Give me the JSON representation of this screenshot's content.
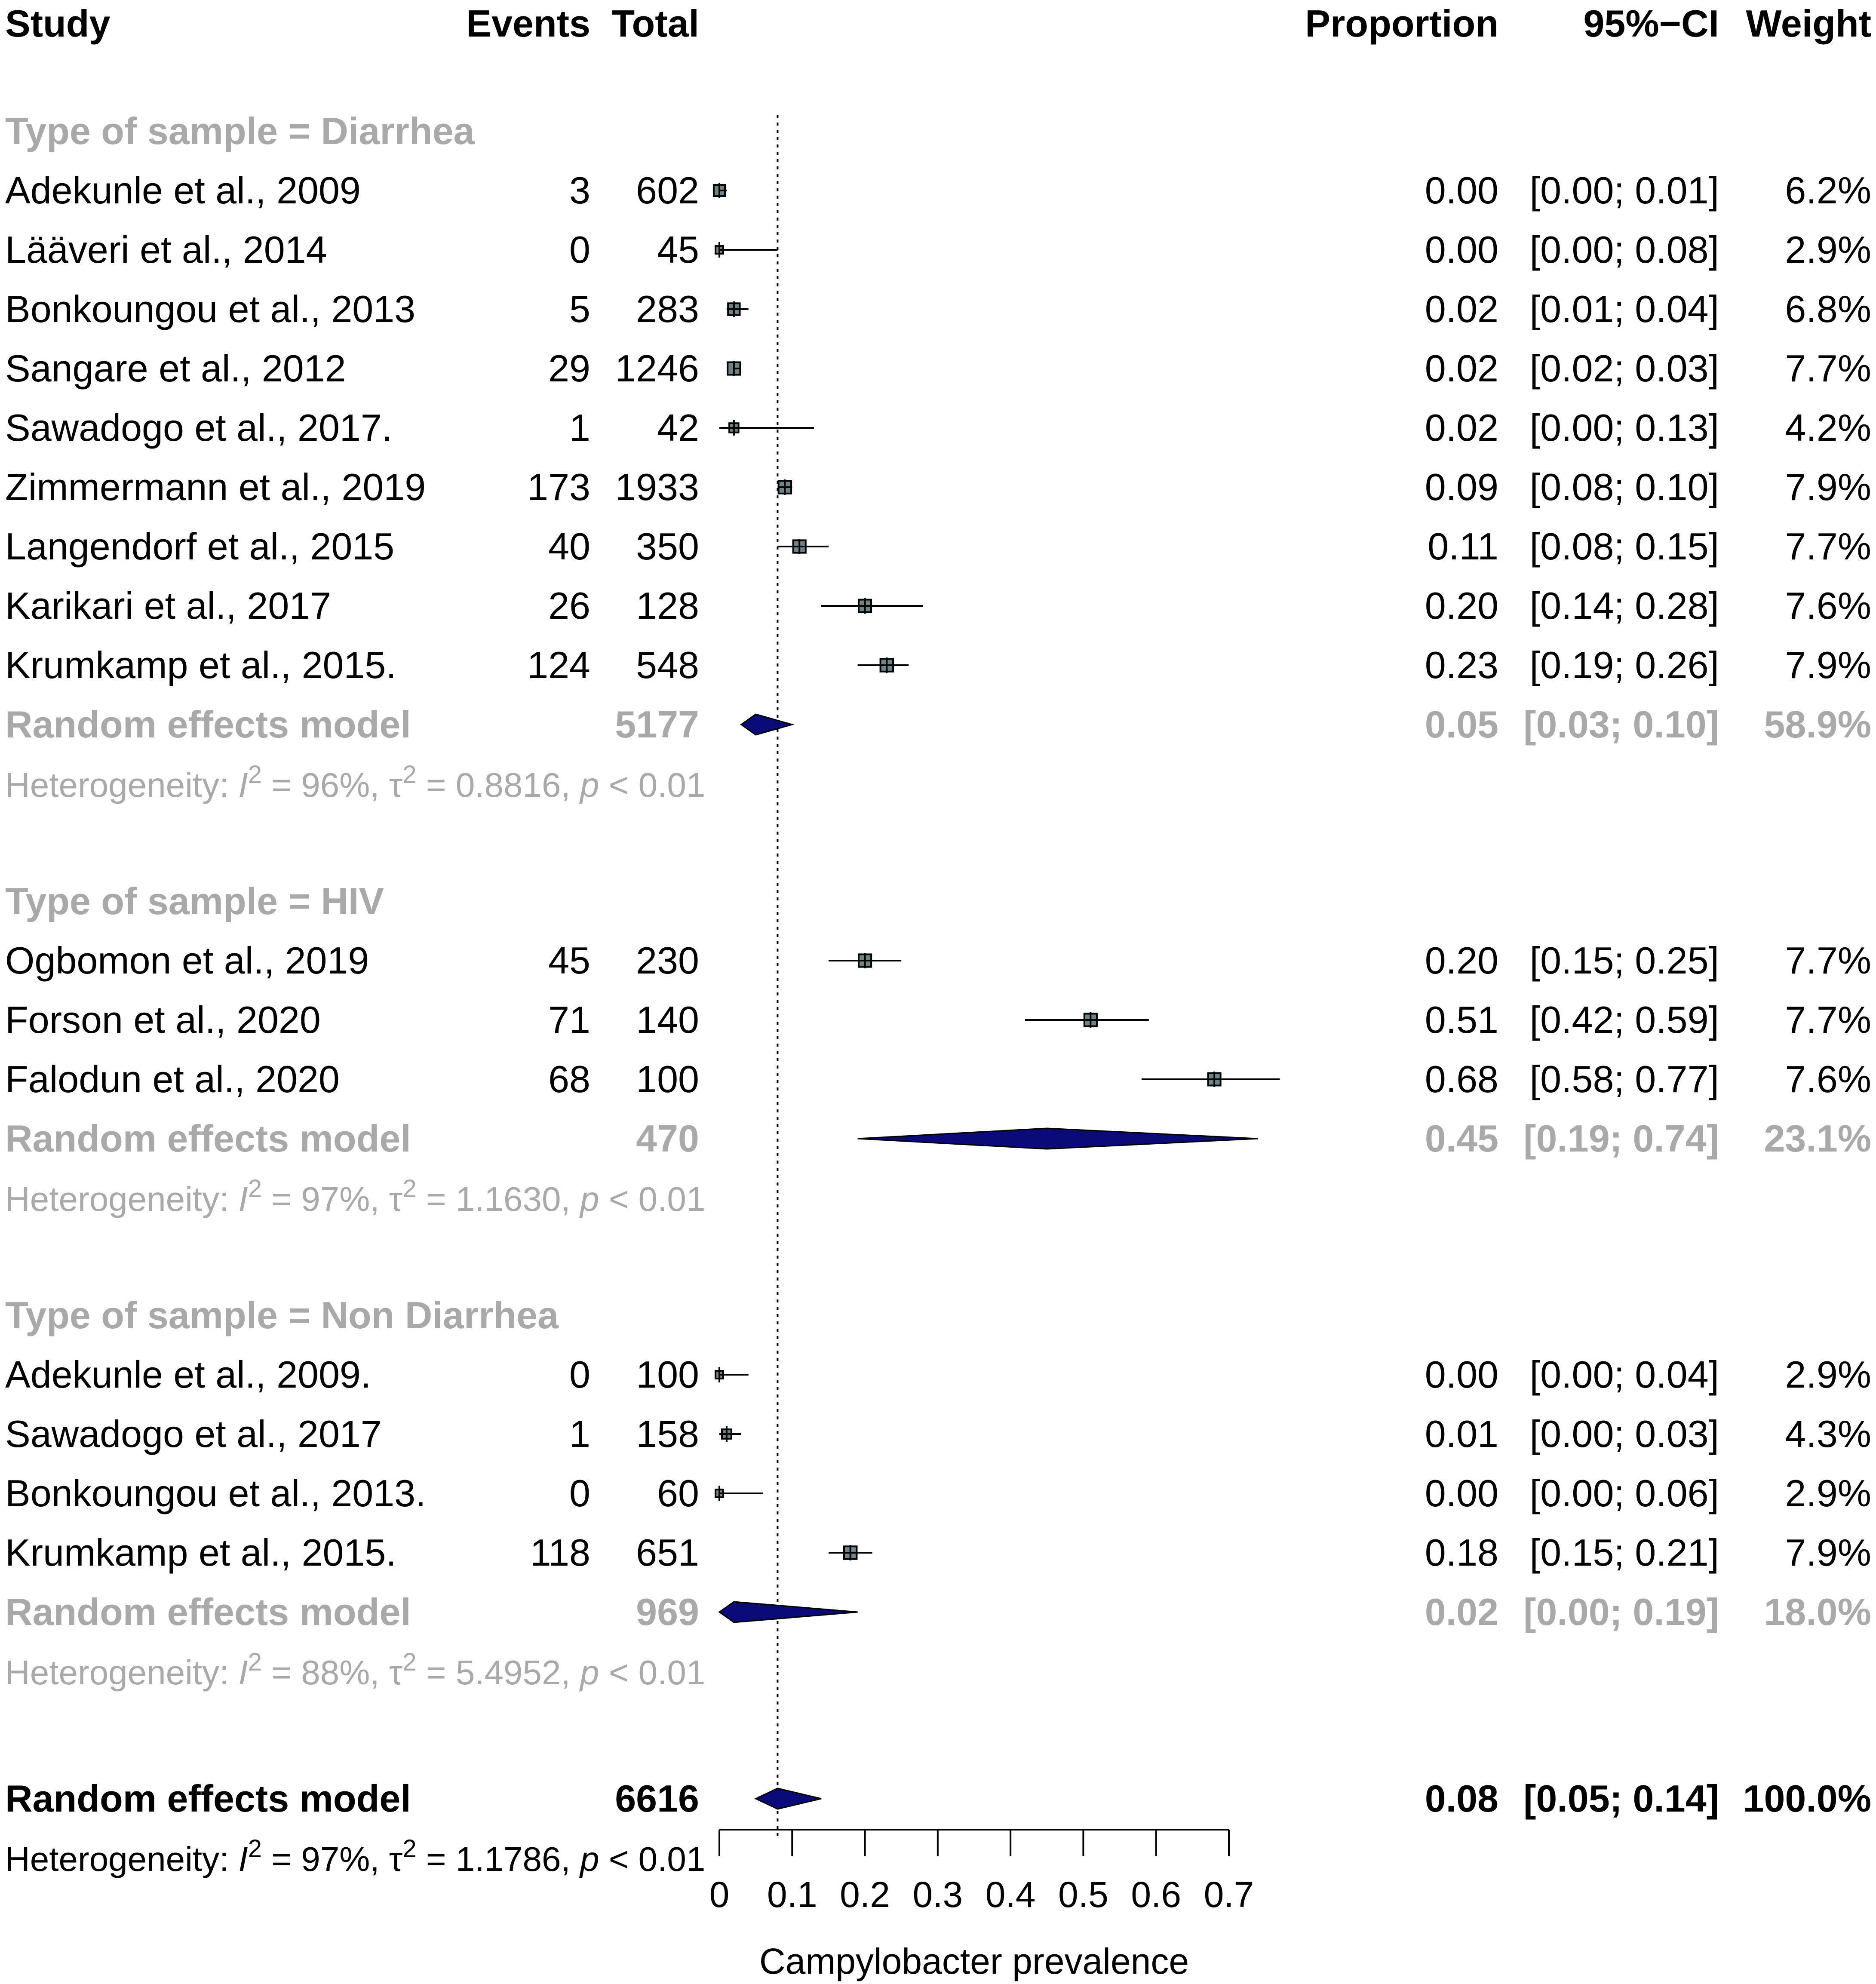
{
  "headers": {
    "study": "Study",
    "events": "Events",
    "total": "Total",
    "proportion": "Proportion",
    "ci": "95%−CI",
    "weight": "Weight"
  },
  "colors": {
    "square_fill": "#6f8488",
    "diamond_fill": "#0a0a78",
    "subgroup_text": "#a9a9a9",
    "text": "#000000"
  },
  "subgroups": [
    {
      "header": "Type of sample = Diarrhea",
      "studies": [
        {
          "study": "Adekunle et al., 2009",
          "events": "3",
          "total": "602",
          "prop": 0.0,
          "lo": 0.0,
          "hi": 0.01,
          "prop_label": "0.00",
          "ci_label": "[0.00; 0.01]",
          "weight_label": "6.2%",
          "weight": 6.2
        },
        {
          "study": "Lääveri et al., 2014",
          "events": "0",
          "total": "45",
          "prop": 0.0,
          "lo": 0.0,
          "hi": 0.08,
          "prop_label": "0.00",
          "ci_label": "[0.00; 0.08]",
          "weight_label": "2.9%",
          "weight": 2.9
        },
        {
          "study": "Bonkoungou et al., 2013",
          "events": "5",
          "total": "283",
          "prop": 0.02,
          "lo": 0.01,
          "hi": 0.04,
          "prop_label": "0.02",
          "ci_label": "[0.01; 0.04]",
          "weight_label": "6.8%",
          "weight": 6.8
        },
        {
          "study": "Sangare et al., 2012",
          "events": "29",
          "total": "1246",
          "prop": 0.02,
          "lo": 0.02,
          "hi": 0.03,
          "prop_label": "0.02",
          "ci_label": "[0.02; 0.03]",
          "weight_label": "7.7%",
          "weight": 7.7
        },
        {
          "study": "Sawadogo et al., 2017.",
          "events": "1",
          "total": "42",
          "prop": 0.02,
          "lo": 0.0,
          "hi": 0.13,
          "prop_label": "0.02",
          "ci_label": "[0.00; 0.13]",
          "weight_label": "4.2%",
          "weight": 4.2
        },
        {
          "study": "Zimmermann et al., 2019",
          "events": "173",
          "total": "1933",
          "prop": 0.09,
          "lo": 0.08,
          "hi": 0.1,
          "prop_label": "0.09",
          "ci_label": "[0.08; 0.10]",
          "weight_label": "7.9%",
          "weight": 7.9
        },
        {
          "study": "Langendorf et al., 2015",
          "events": "40",
          "total": "350",
          "prop": 0.11,
          "lo": 0.08,
          "hi": 0.15,
          "prop_label": "0.11",
          "ci_label": "[0.08; 0.15]",
          "weight_label": "7.7%",
          "weight": 7.7
        },
        {
          "study": "Karikari et al., 2017",
          "events": "26",
          "total": "128",
          "prop": 0.2,
          "lo": 0.14,
          "hi": 0.28,
          "prop_label": "0.20",
          "ci_label": "[0.14; 0.28]",
          "weight_label": "7.6%",
          "weight": 7.6
        },
        {
          "study": "Krumkamp et al., 2015.",
          "events": "124",
          "total": "548",
          "prop": 0.23,
          "lo": 0.19,
          "hi": 0.26,
          "prop_label": "0.23",
          "ci_label": "[0.19; 0.26]",
          "weight_label": "7.9%",
          "weight": 7.9
        }
      ],
      "pooled": {
        "label": "Random effects model",
        "total": "5177",
        "est": 0.05,
        "lo": 0.03,
        "hi": 0.1,
        "prop_label": "0.05",
        "ci_label": "[0.03; 0.10]",
        "weight_label": "58.9%"
      },
      "heterogeneity": {
        "prefix": "Heterogeneity: ",
        "i2": "I",
        "sup": "2",
        "i2_value": " = 96%, τ",
        "tau_value": " = 0.8816, ",
        "p": "p",
        "p_value": " < 0.01"
      }
    },
    {
      "header": "Type of sample = HIV",
      "studies": [
        {
          "study": "Ogbomon et al., 2019",
          "events": "45",
          "total": "230",
          "prop": 0.2,
          "lo": 0.15,
          "hi": 0.25,
          "prop_label": "0.20",
          "ci_label": "[0.15; 0.25]",
          "weight_label": "7.7%",
          "weight": 7.7
        },
        {
          "study": "Forson et al., 2020",
          "events": "71",
          "total": "140",
          "prop": 0.51,
          "lo": 0.42,
          "hi": 0.59,
          "prop_label": "0.51",
          "ci_label": "[0.42; 0.59]",
          "weight_label": "7.7%",
          "weight": 7.7
        },
        {
          "study": "Falodun et al., 2020",
          "events": "68",
          "total": "100",
          "prop": 0.68,
          "lo": 0.58,
          "hi": 0.77,
          "prop_label": "0.68",
          "ci_label": "[0.58; 0.77]",
          "weight_label": "7.6%",
          "weight": 7.6
        }
      ],
      "pooled": {
        "label": "Random effects model",
        "total": "470",
        "est": 0.45,
        "lo": 0.19,
        "hi": 0.74,
        "prop_label": "0.45",
        "ci_label": "[0.19; 0.74]",
        "weight_label": "23.1%"
      },
      "heterogeneity": {
        "prefix": "Heterogeneity: ",
        "i2": "I",
        "sup": "2",
        "i2_value": " = 97%, τ",
        "tau_value": " = 1.1630, ",
        "p": "p",
        "p_value": " < 0.01"
      }
    },
    {
      "header": "Type of sample = Non Diarrhea",
      "studies": [
        {
          "study": "Adekunle et al., 2009.",
          "events": "0",
          "total": "100",
          "prop": 0.0,
          "lo": 0.0,
          "hi": 0.04,
          "prop_label": "0.00",
          "ci_label": "[0.00; 0.04]",
          "weight_label": "2.9%",
          "weight": 2.9
        },
        {
          "study": "Sawadogo et al., 2017",
          "events": "1",
          "total": "158",
          "prop": 0.01,
          "lo": 0.0,
          "hi": 0.03,
          "prop_label": "0.01",
          "ci_label": "[0.00; 0.03]",
          "weight_label": "4.3%",
          "weight": 4.3
        },
        {
          "study": "Bonkoungou et al., 2013.",
          "events": "0",
          "total": "60",
          "prop": 0.0,
          "lo": 0.0,
          "hi": 0.06,
          "prop_label": "0.00",
          "ci_label": "[0.00; 0.06]",
          "weight_label": "2.9%",
          "weight": 2.9
        },
        {
          "study": "Krumkamp et al., 2015.",
          "events": "118",
          "total": "651",
          "prop": 0.18,
          "lo": 0.15,
          "hi": 0.21,
          "prop_label": "0.18",
          "ci_label": "[0.15; 0.21]",
          "weight_label": "7.9%",
          "weight": 7.9
        }
      ],
      "pooled": {
        "label": "Random effects model",
        "total": "969",
        "est": 0.02,
        "lo": 0.0,
        "hi": 0.19,
        "prop_label": "0.02",
        "ci_label": "[0.00; 0.19]",
        "weight_label": "18.0%"
      },
      "heterogeneity": {
        "prefix": "Heterogeneity: ",
        "i2": "I",
        "sup": "2",
        "i2_value": " = 88%, τ",
        "tau_value": " = 5.4952, ",
        "p": "p",
        "p_value": " < 0.01"
      }
    }
  ],
  "overall": {
    "label": "Random effects model",
    "total": "6616",
    "est": 0.08,
    "lo": 0.05,
    "hi": 0.14,
    "prop_label": "0.08",
    "ci_label": "[0.05; 0.14]",
    "weight_label": "100.0%",
    "heterogeneity": {
      "prefix": "Heterogeneity: ",
      "i2": "I",
      "sup": "2",
      "i2_value": " = 97%, τ",
      "tau_value": " = 1.1786, ",
      "p": "p",
      "p_value": " < 0.01"
    }
  },
  "chart_data": {
    "type": "forest",
    "title": "",
    "xlabel": "Campylobacter prevalence",
    "xlim": [
      0,
      0.7
    ],
    "ticks": [
      0,
      0.1,
      0.2,
      0.3,
      0.4,
      0.5,
      0.6,
      0.7
    ],
    "tick_labels": [
      "0",
      "0.1",
      "0.2",
      "0.3",
      "0.4",
      "0.5",
      "0.6",
      "0.7"
    ],
    "reference_line": 0.08,
    "reference_style": "dotted"
  }
}
